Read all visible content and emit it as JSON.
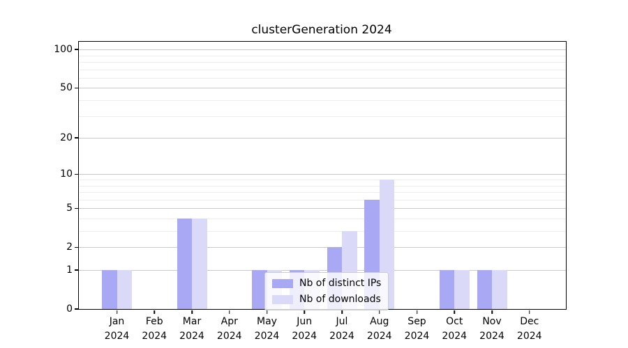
{
  "title": "clusterGeneration 2024",
  "chart_data": {
    "type": "bar",
    "title": "clusterGeneration 2024",
    "categories": [
      "Jan",
      "Feb",
      "Mar",
      "Apr",
      "May",
      "Jun",
      "Jul",
      "Aug",
      "Sep",
      "Oct",
      "Nov",
      "Dec"
    ],
    "year_label": "2024",
    "series": [
      {
        "name": "Nb of distinct IPs",
        "color": "#a8a8f4",
        "values": [
          1,
          0,
          4,
          0,
          1,
          1,
          2,
          6,
          0,
          1,
          1,
          0
        ]
      },
      {
        "name": "Nb of downloads",
        "color": "#dadaf8",
        "values": [
          1,
          0,
          4,
          0,
          1,
          1,
          3,
          9,
          0,
          1,
          1,
          0
        ]
      }
    ],
    "yscale": "log1p",
    "ylim": [
      0,
      114
    ],
    "yticks": [
      0,
      1,
      2,
      5,
      10,
      20,
      50,
      100
    ],
    "minor_yticks": [
      3,
      4,
      6,
      7,
      8,
      9,
      30,
      40,
      60,
      70,
      80,
      90
    ],
    "grid": "horizontal-major-and-minor",
    "legend": {
      "position": "lower center",
      "labels": [
        "Nb of distinct IPs",
        "Nb of downloads"
      ]
    },
    "xlabel": "",
    "ylabel": ""
  },
  "colors": {
    "background": "#ffffff",
    "axis": "#000000",
    "grid_major": "#c9c9c9",
    "grid_minor": "#ededed",
    "text": "#000000",
    "legend_border": "#cccccc"
  }
}
